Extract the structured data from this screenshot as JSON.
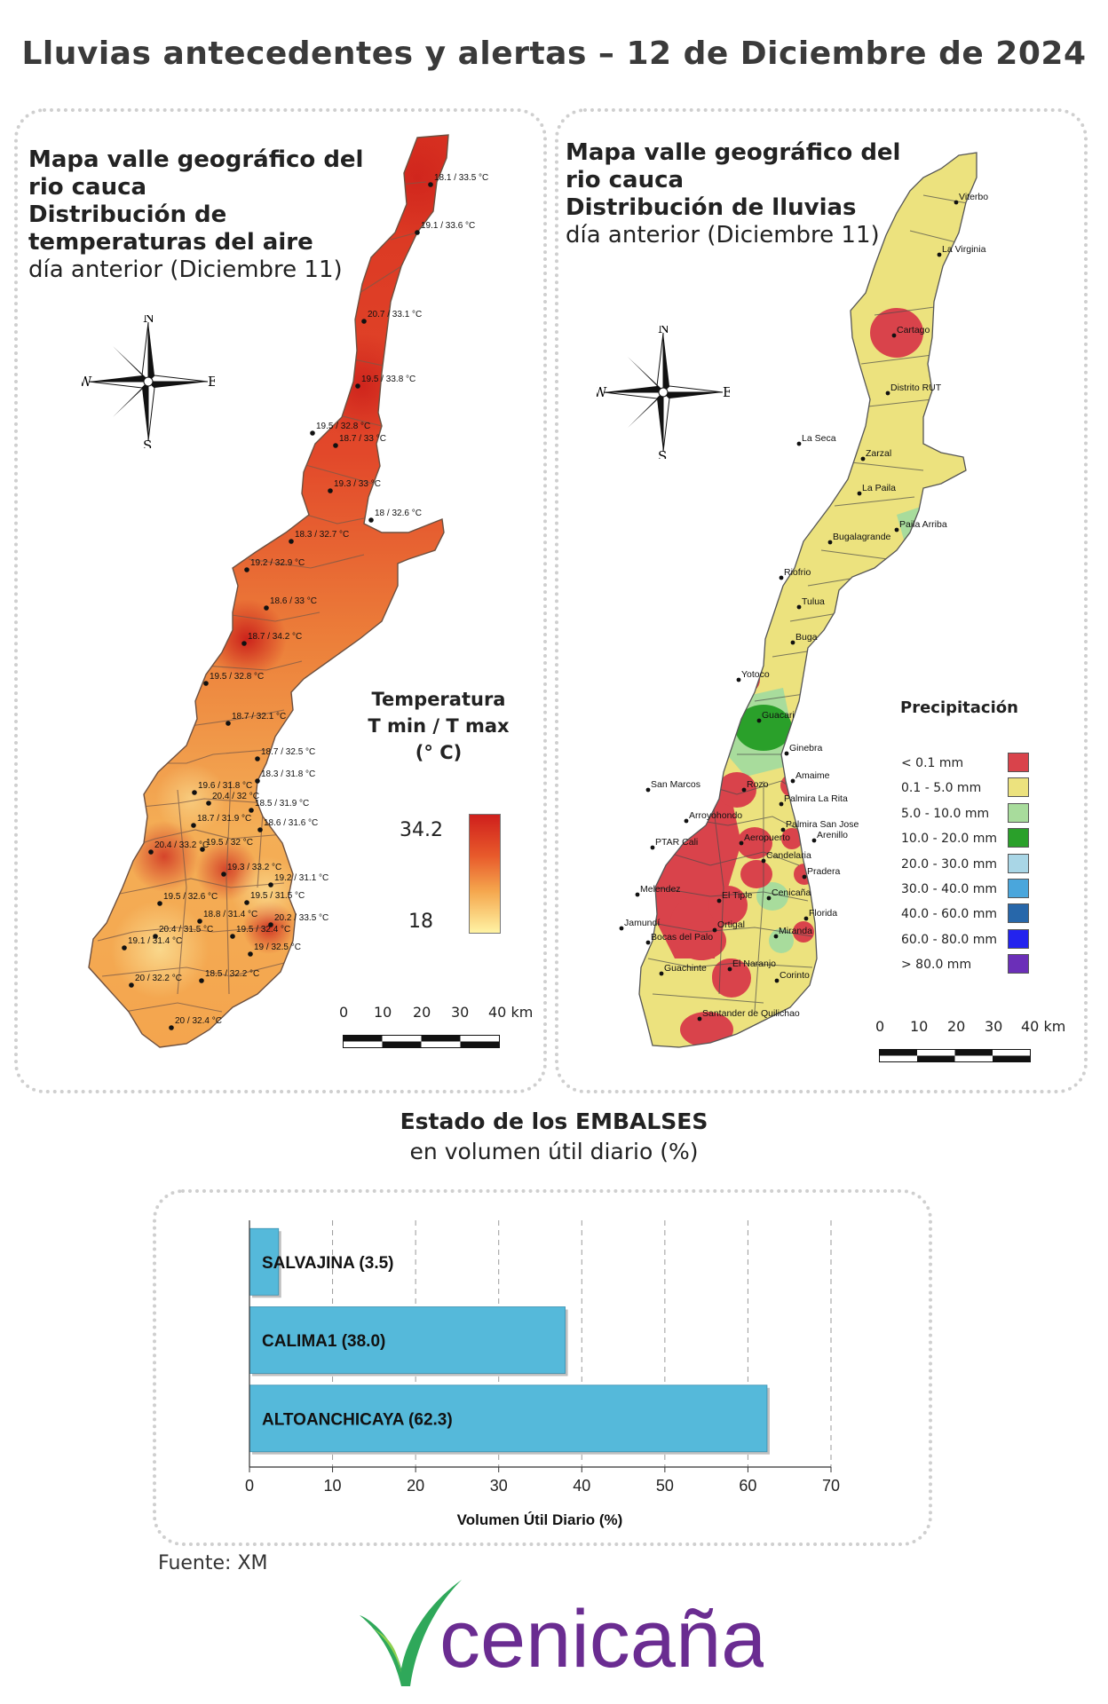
{
  "title": "Lluvias antecedentes y alertas – 12 de Diciembre de 2024",
  "temp_map": {
    "heading": [
      "Mapa valle geográfico del",
      "rio cauca",
      "Distribución de",
      "temperaturas del aire"
    ],
    "subheading": "día anterior (Diciembre 11)",
    "compass": {
      "n": "N",
      "s": "S",
      "e": "E",
      "w": "W"
    },
    "legend": {
      "title": [
        "Temperatura",
        "T min / T max",
        "(° C)"
      ],
      "max": "34.2",
      "min": "18"
    },
    "stations": [
      "18.1 / 33.5 °C",
      "19.1 / 33.6 °C",
      "20.7 / 33.1 °C",
      "19.5 / 33.8 °C",
      "19.5 / 32.8 °C",
      "18.7 / 33 °C",
      "19.3 / 33 °C",
      "18 / 32.6 °C",
      "18.3 / 32.7 °C",
      "19.2 / 32.9 °C",
      "18.6 / 33 °C",
      "18.7 / 34.2 °C",
      "19.5 / 32.8 °C",
      "18.7 / 32.1 °C",
      "18.7 / 32.5 °C",
      "19.6 / 31.8 °C",
      "18.3 / 31.8 °C",
      "20.4 / 32 °C",
      "18.5 / 31.9 °C",
      "18.7 / 31.9 °C",
      "18.6 / 31.6 °C",
      "20.4 / 33.2 °C",
      "19.5 / 32 °C",
      "19.3 / 33.2 °C",
      "19.2 / 31.1 °C",
      "19.5 / 32.6 °C",
      "19.5 / 31.5 °C",
      "18.8 / 31.4 °C",
      "20.2 / 33.5 °C",
      "20.4 / 31.5 °C",
      "19.5 / 32.4 °C",
      "19.1 / 31.4 °C",
      "19 / 32.5 °C",
      "20 / 32.2 °C",
      "18.5 / 32.2 °C",
      "20 / 32.4 °C"
    ],
    "scale_labels": [
      "0",
      "10",
      "20",
      "30",
      "40 km"
    ]
  },
  "rain_map": {
    "heading": [
      "Mapa valle geográfico del",
      "rio cauca"
    ],
    "heading_bold": "Distribución de lluvias",
    "subheading": "día anterior (Diciembre 11)",
    "compass": {
      "n": "N",
      "s": "S",
      "e": "E",
      "w": "W"
    },
    "places": [
      "Viterbo",
      "La Virginia",
      "Cartago",
      "Distrito RUT",
      "La Seca",
      "Zarzal",
      "La Paila",
      "Paila Arriba",
      "Bugalagrande",
      "Riofrio",
      "Tulua",
      "Buga",
      "Yotoco",
      "Guacari",
      "Ginebra",
      "San Marcos",
      "Amaime",
      "Rozo",
      "Palmira La Rita",
      "Arroyohondo",
      "Palmira San Jose",
      "Aeropuerto",
      "Arenillo",
      "PTAR Cali",
      "Candelaria",
      "Pradera",
      "Melendez",
      "El Tiple",
      "Cenicaña",
      "Florida",
      "Jamundí",
      "Bocas del Palo",
      "Ortigal",
      "Miranda",
      "Guachinte",
      "El Naranjo",
      "Corinto",
      "Santander de Quilichao"
    ],
    "legend": {
      "title": "Precipitación",
      "items": [
        {
          "label": "< 0.1 mm",
          "color": "#d9434b"
        },
        {
          "label": "0.1 - 5.0 mm",
          "color": "#ece27e"
        },
        {
          "label": "5.0 - 10.0 mm",
          "color": "#a8dc9c"
        },
        {
          "label": "10.0 - 20.0 mm",
          "color": "#2aa02a"
        },
        {
          "label": "20.0 - 30.0 mm",
          "color": "#a9d6e6"
        },
        {
          "label": "30.0 - 40.0 mm",
          "color": "#4aa6dc"
        },
        {
          "label": "40.0 - 60.0 mm",
          "color": "#2767aa"
        },
        {
          "label": "60.0 - 80.0 mm",
          "color": "#2323ee"
        },
        {
          "label": "> 80.0 mm",
          "color": "#6b2fb8"
        }
      ]
    },
    "scale_labels": [
      "0",
      "10",
      "20",
      "30",
      "40 km"
    ]
  },
  "reservoirs": {
    "title": "Estado de los EMBALSES",
    "subtitle": "en volumen útil diario (%)",
    "source": "Fuente: XM",
    "logo_text": "cenicaña"
  },
  "chart_data": {
    "type": "bar",
    "orientation": "horizontal",
    "categories": [
      "SALVAJINA",
      "CALIMA1",
      "ALTOANCHICAYA"
    ],
    "values": [
      3.5,
      38.0,
      62.3
    ],
    "data_labels": [
      "SALVAJINA (3.5)",
      "CALIMA1 (38.0)",
      "ALTOANCHICAYA (62.3)"
    ],
    "xlabel": "Volumen Útil Diario (%)",
    "xlim": [
      0,
      70
    ],
    "xticks": [
      0,
      10,
      20,
      30,
      40,
      50,
      60,
      70
    ],
    "grid": true,
    "bar_color": "#55b9da"
  }
}
